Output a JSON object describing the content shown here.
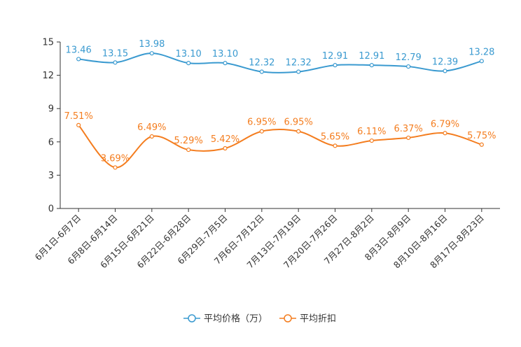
{
  "chart_data": {
    "type": "line",
    "categories": [
      "6月1日-6月7日",
      "6月8日-6月14日",
      "6月15日-6月21日",
      "6月22日-6月28日",
      "6月29日-7月5日",
      "7月6日-7月12日",
      "7月13日-7月19日",
      "7月20日-7月26日",
      "7月27日-8月2日",
      "8月3日-8月9日",
      "8月10日-8月16日",
      "8月17日-8月23日"
    ],
    "ylim": [
      0,
      15
    ],
    "yticks": [
      0,
      3,
      6,
      9,
      12,
      15
    ],
    "legend_position": "bottom",
    "series": [
      {
        "name": "平均价格（万）",
        "color": "#3a9ad0",
        "values": [
          13.46,
          13.15,
          13.98,
          13.1,
          13.1,
          12.32,
          12.32,
          12.91,
          12.91,
          12.79,
          12.39,
          13.28
        ],
        "labels": [
          "13.46",
          "13.15",
          "13.98",
          "13.10",
          "13.10",
          "12.32",
          "12.32",
          "12.91",
          "12.91",
          "12.79",
          "12.39",
          "13.28"
        ]
      },
      {
        "name": "平均折扣",
        "color": "#f47d1f",
        "values": [
          7.51,
          3.69,
          6.49,
          5.29,
          5.42,
          6.95,
          6.95,
          5.65,
          6.11,
          6.37,
          6.79,
          5.75
        ],
        "labels": [
          "7.51%",
          "3.69%",
          "6.49%",
          "5.29%",
          "5.42%",
          "6.95%",
          "6.95%",
          "5.65%",
          "6.11%",
          "6.37%",
          "6.79%",
          "5.75%"
        ]
      }
    ]
  }
}
